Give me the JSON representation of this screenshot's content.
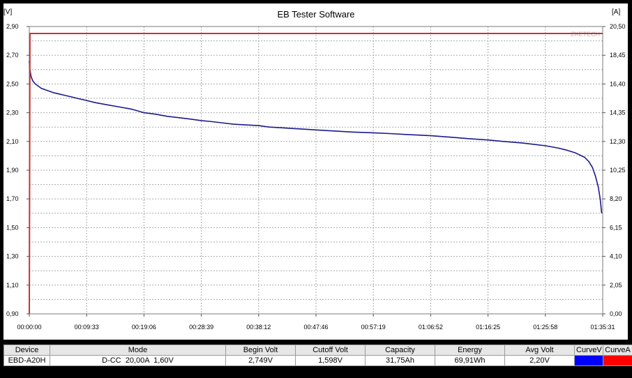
{
  "window": {
    "title": "EB Tester Software"
  },
  "chart_data": {
    "type": "line",
    "title": "EB Tester Software",
    "watermark": "ZKETECH",
    "left_axis": {
      "unit_label": "[V]",
      "min": 0.9,
      "max": 2.9,
      "tick_labels": [
        "0,90",
        "1,10",
        "1,30",
        "1,50",
        "1,70",
        "1,90",
        "2,10",
        "2,30",
        "2,50",
        "2,70",
        "2,90"
      ]
    },
    "right_axis": {
      "unit_label": "[A]",
      "min": 0.0,
      "max": 20.5,
      "tick_labels": [
        "0,00",
        "2,05",
        "4,10",
        "6,15",
        "8,20",
        "10,25",
        "12,30",
        "14,35",
        "16,40",
        "18,45",
        "20,50"
      ]
    },
    "x_axis": {
      "tick_labels": [
        "00:00:00",
        "00:09:33",
        "00:19:06",
        "00:28:39",
        "00:38:12",
        "00:47:46",
        "00:57:19",
        "01:06:52",
        "01:16:25",
        "01:25:58",
        "01:35:31"
      ],
      "min_minutes": 0,
      "max_minutes": 95.52
    },
    "grid": true,
    "series": [
      {
        "name": "CurveV",
        "axis": "left",
        "color": "#1a1a8c",
        "x_minutes": [
          0,
          0.1,
          0.3,
          0.6,
          1,
          1.5,
          2,
          3,
          4,
          5,
          6,
          7,
          8,
          9.55,
          11,
          13,
          15,
          17,
          19.1,
          21,
          23,
          25,
          27,
          28.65,
          30,
          32,
          34,
          36,
          38.2,
          40,
          42,
          44,
          46,
          47.77,
          50,
          52,
          54,
          57.3,
          60,
          63,
          66.9,
          70,
          73,
          76.4,
          79,
          82,
          84,
          86,
          88,
          89.5,
          91,
          92.5,
          93.2,
          93.8,
          94.3,
          94.8,
          95.1,
          95.35
        ],
        "values": [
          2.66,
          2.6,
          2.55,
          2.52,
          2.5,
          2.485,
          2.47,
          2.455,
          2.44,
          2.43,
          2.42,
          2.41,
          2.4,
          2.385,
          2.37,
          2.355,
          2.34,
          2.325,
          2.3,
          2.29,
          2.275,
          2.265,
          2.255,
          2.245,
          2.24,
          2.23,
          2.22,
          2.215,
          2.21,
          2.2,
          2.195,
          2.19,
          2.185,
          2.18,
          2.175,
          2.17,
          2.165,
          2.16,
          2.155,
          2.148,
          2.14,
          2.13,
          2.12,
          2.11,
          2.1,
          2.09,
          2.08,
          2.07,
          2.055,
          2.04,
          2.02,
          1.99,
          1.96,
          1.92,
          1.86,
          1.78,
          1.7,
          1.6
        ]
      },
      {
        "name": "CurveA",
        "axis": "right",
        "color": "#c83232",
        "x_minutes": [
          0,
          0.1,
          95.52
        ],
        "values": [
          0,
          20.0,
          20.0
        ]
      }
    ]
  },
  "table": {
    "headers": [
      "Device",
      "Mode",
      "Begin Volt",
      "Cutoff Volt",
      "Capacity",
      "Energy",
      "Avg Volt",
      "CurveV",
      "CurveA"
    ],
    "row": {
      "device": "EBD-A20H",
      "mode": "D-CC  20,00A  1,60V",
      "begin_volt": "2,749V",
      "cutoff_volt": "1,598V",
      "capacity": "31,75Ah",
      "energy": "69,91Wh",
      "avg_volt": "2,20V"
    },
    "swatch_colors": {
      "curve_v": "#0000ff",
      "curve_a": "#ff0000"
    }
  }
}
